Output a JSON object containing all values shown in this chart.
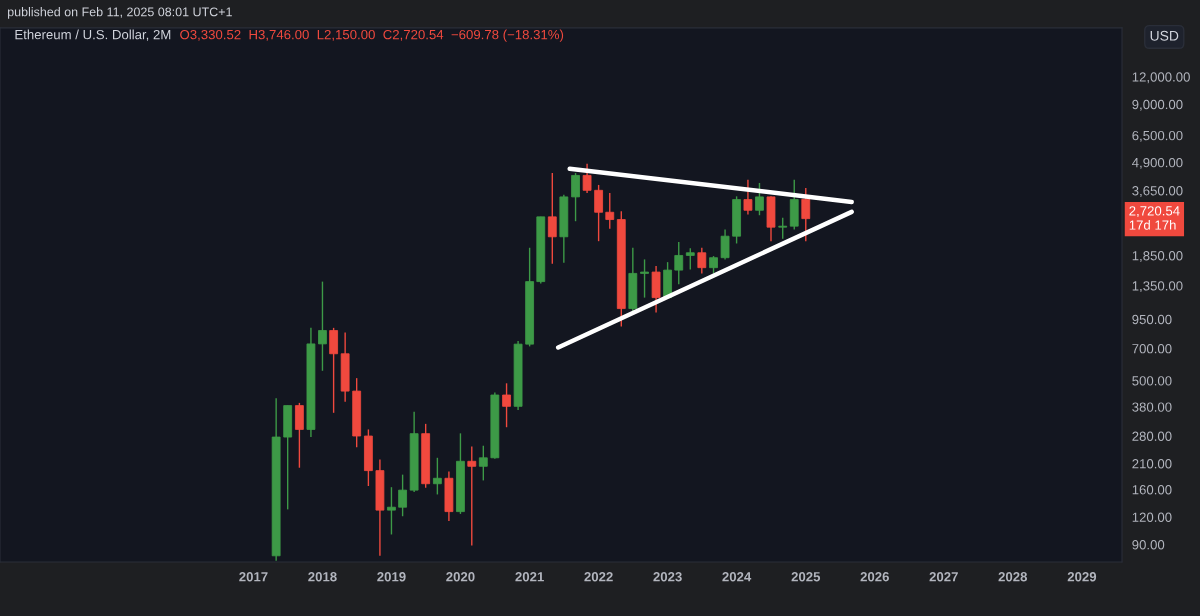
{
  "chart_data": {
    "type": "candlestick",
    "title": "Ethereum / U.S. Dollar, 2M",
    "subtitle": "O3,330.52  H3,746.00  L2,150.00  C2,720.54  −609.78 (−18.31%)",
    "annotations": [
      "published on Feb 11, 2025 08:01 UTC+1",
      "USD",
      "2,720.54\n17d 17h"
    ],
    "x": [
      "2017-05",
      "2017-07",
      "2017-09",
      "2017-11",
      "2018-01",
      "2018-03",
      "2018-05",
      "2018-07",
      "2018-09",
      "2018-11",
      "2019-01",
      "2019-03",
      "2019-05",
      "2019-07",
      "2019-09",
      "2019-11",
      "2020-01",
      "2020-03",
      "2020-05",
      "2020-07",
      "2020-09",
      "2020-11",
      "2021-01",
      "2021-03",
      "2021-05",
      "2021-07",
      "2021-09",
      "2021-11",
      "2022-01",
      "2022-03",
      "2022-05",
      "2022-07",
      "2022-09",
      "2022-11",
      "2023-01",
      "2023-03",
      "2023-05",
      "2023-07",
      "2023-09",
      "2023-11",
      "2024-01",
      "2024-03",
      "2024-05",
      "2024-07",
      "2024-09",
      "2024-11",
      "2025-01"
    ],
    "ohlc": [
      [
        80,
        416,
        76,
        277
      ],
      [
        277,
        385,
        130,
        385
      ],
      [
        385,
        396,
        201,
        300
      ],
      [
        300,
        868,
        277,
        734
      ],
      [
        734,
        1408,
        554,
        844
      ],
      [
        844,
        868,
        357,
        662
      ],
      [
        662,
        827,
        401,
        448
      ],
      [
        448,
        513,
        249,
        280
      ],
      [
        280,
        300,
        166,
        195
      ],
      [
        195,
        219,
        80,
        129
      ],
      [
        129,
        164,
        100,
        133
      ],
      [
        133,
        187,
        121,
        159
      ],
      [
        159,
        361,
        156,
        287
      ],
      [
        287,
        318,
        163,
        170
      ],
      [
        170,
        223,
        152,
        180
      ],
      [
        180,
        193,
        115,
        127
      ],
      [
        127,
        288,
        124,
        215
      ],
      [
        215,
        251,
        89,
        204
      ],
      [
        204,
        253,
        176,
        223
      ],
      [
        223,
        442,
        221,
        430
      ],
      [
        430,
        486,
        307,
        382
      ],
      [
        382,
        757,
        368,
        732
      ],
      [
        732,
        2006,
        715,
        1408
      ],
      [
        1408,
        2772,
        1382,
        2772
      ],
      [
        2772,
        4383,
        1697,
        2250
      ],
      [
        2250,
        3497,
        1716,
        3415
      ],
      [
        3415,
        4383,
        2648,
        4275
      ],
      [
        4275,
        4833,
        3560,
        3658
      ],
      [
        3658,
        3870,
        2149,
        2908
      ],
      [
        2908,
        3560,
        2445,
        2695
      ],
      [
        2695,
        2939,
        880,
        1062
      ],
      [
        1062,
        2006,
        1019,
        1534
      ],
      [
        1534,
        1776,
        1191,
        1556
      ],
      [
        1556,
        1656,
        1019,
        1191
      ],
      [
        1191,
        1726,
        1183,
        1588
      ],
      [
        1588,
        2128,
        1369,
        1851
      ],
      [
        1851,
        1998,
        1600,
        1904
      ],
      [
        1904,
        2006,
        1534,
        1629
      ],
      [
        1629,
        1839,
        1534,
        1808
      ],
      [
        1808,
        2428,
        1776,
        2264
      ],
      [
        2264,
        3435,
        2098,
        3321
      ],
      [
        3321,
        4086,
        2840,
        2969
      ],
      [
        2969,
        3951,
        2819,
        3415
      ],
      [
        3415,
        3435,
        2149,
        2488
      ],
      [
        2488,
        2743,
        2203,
        2514
      ],
      [
        2514,
        4086,
        2428,
        3321
      ],
      [
        3330.52,
        3746,
        2150,
        2720.54
      ]
    ],
    "colors": [
      "#3d9a47",
      "#3d9a47",
      "#f0493e",
      "#3d9a47",
      "#3d9a47",
      "#f0493e",
      "#f0493e",
      "#f0493e",
      "#f0493e",
      "#f0493e",
      "#3d9a47",
      "#3d9a47",
      "#3d9a47",
      "#f0493e",
      "#3d9a47",
      "#f0493e",
      "#3d9a47",
      "#f0493e",
      "#3d9a47",
      "#3d9a47",
      "#f0493e",
      "#3d9a47",
      "#3d9a47",
      "#3d9a47",
      "#f0493e",
      "#3d9a47",
      "#3d9a47",
      "#f0493e",
      "#f0493e",
      "#f0493e",
      "#f0493e",
      "#3d9a47",
      "#3d9a47",
      "#f0493e",
      "#3d9a47",
      "#3d9a47",
      "#3d9a47",
      "#f0493e",
      "#3d9a47",
      "#3d9a47",
      "#3d9a47",
      "#f0493e",
      "#3d9a47",
      "#f0493e",
      "#3d9a47",
      "#3d9a47",
      "#f0493e"
    ],
    "series": [
      {
        "type": "line",
        "x": [
          "2021-08",
          "2025-09"
        ],
        "values": [
          4586,
          3240
        ],
        "color": "#ffffff"
      },
      {
        "type": "line",
        "x": [
          "2021-06",
          "2025-09"
        ],
        "values": [
          707,
          2920
        ],
        "color": "#ffffff"
      }
    ],
    "xlim": [
      "2013-05",
      "2029-08"
    ],
    "xticks": [
      "2017",
      "2018",
      "2019",
      "2020",
      "2021",
      "2022",
      "2023",
      "2024",
      "2025",
      "2026",
      "2027",
      "2028",
      "2029"
    ],
    "ylim": [
      75,
      20000
    ],
    "log": true,
    "yticks": [
      {
        "value": 90,
        "label": "90.00"
      },
      {
        "value": 120,
        "label": "120.00"
      },
      {
        "value": 160,
        "label": "160.00"
      },
      {
        "value": 210,
        "label": "210.00"
      },
      {
        "value": 280,
        "label": "280.00"
      },
      {
        "value": 380,
        "label": "380.00"
      },
      {
        "value": 500,
        "label": "500.00"
      },
      {
        "value": 700,
        "label": "700.00"
      },
      {
        "value": 950,
        "label": "950.00"
      },
      {
        "value": 1350,
        "label": "1,350.00"
      },
      {
        "value": 1850,
        "label": "1,850.00"
      },
      {
        "value": 3650,
        "label": "3,650.00"
      },
      {
        "value": 4900,
        "label": "4,900.00"
      },
      {
        "value": 6500,
        "label": "6,500.00"
      },
      {
        "value": 9000,
        "label": "9,000.00"
      },
      {
        "value": 12000,
        "label": "12,000.00"
      }
    ],
    "grid": false
  }
}
